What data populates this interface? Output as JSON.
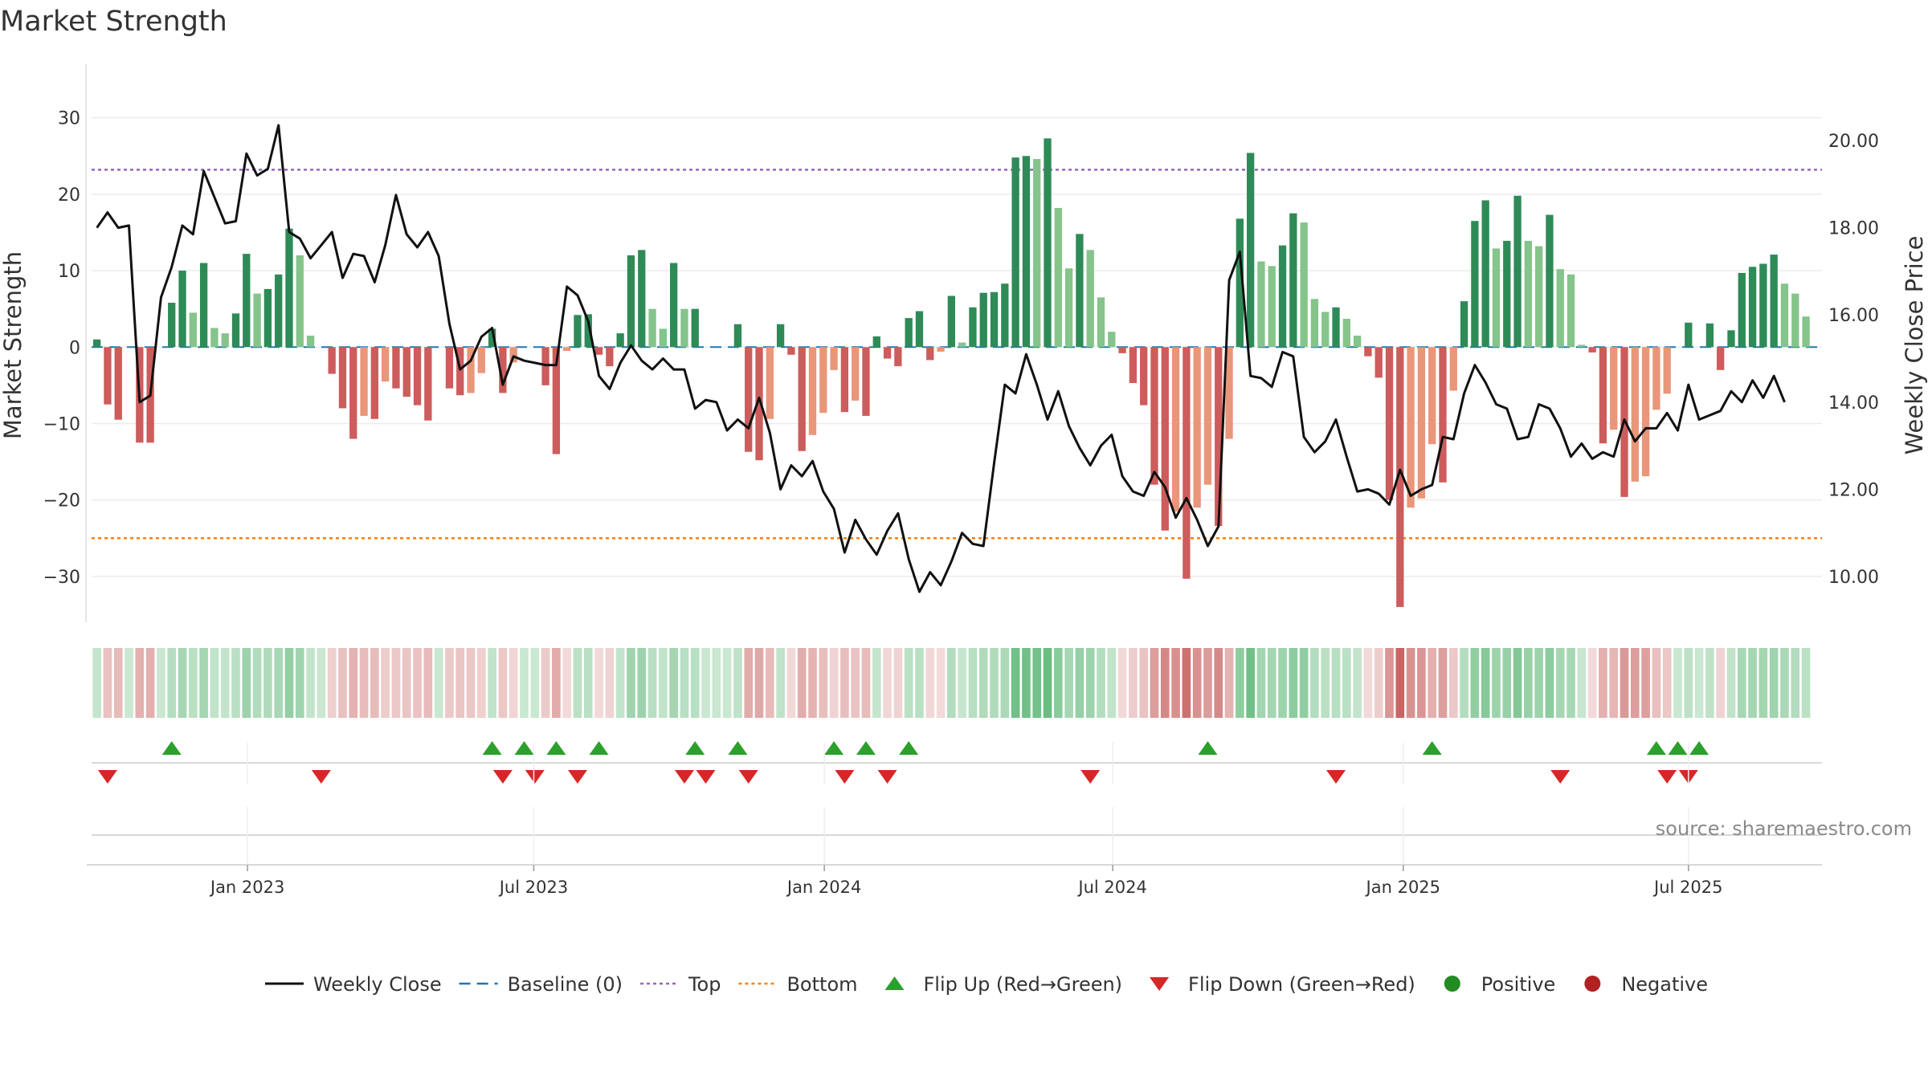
{
  "chart_data": {
    "type": "bar",
    "title": "Market Strength",
    "ylabel": "Market Strength",
    "y2label": "Weekly Close Price",
    "ylim": [
      -36,
      37
    ],
    "y2lim": [
      8.95,
      21.75
    ],
    "yticks": [
      -30,
      -20,
      -10,
      0,
      10,
      20,
      30
    ],
    "y2ticks": [
      10,
      12,
      14,
      16,
      18,
      20
    ],
    "top_line": 23.2,
    "bottom_line": -25,
    "x_start_week": 0,
    "x_end_week": 162,
    "date_ticks": [
      {
        "label": "Jan 2023",
        "week": 14.6
      },
      {
        "label": "Jul 2023",
        "week": 41.4
      },
      {
        "label": "Jan 2024",
        "week": 68.6
      },
      {
        "label": "Jul 2024",
        "week": 95.6
      },
      {
        "label": "Jan 2025",
        "week": 122.8
      },
      {
        "label": "Jul 2025",
        "week": 149.5
      }
    ],
    "strength": [
      1,
      -7.5,
      -9.5,
      0,
      -12.5,
      -12.5,
      0,
      5.8,
      10,
      4.5,
      11,
      2.5,
      1.8,
      4.4,
      12.2,
      7,
      7.6,
      9.5,
      15.5,
      12,
      1.5,
      0,
      -3.5,
      -8,
      -12,
      -9,
      -9.4,
      -4.5,
      -5.4,
      -6.5,
      -7.6,
      -9.6,
      0,
      -5.4,
      -6.3,
      -6,
      -3.4,
      2.4,
      -6,
      -2,
      0,
      0,
      -5,
      -14,
      -0.5,
      4.2,
      4.3,
      -1,
      -2.5,
      1.8,
      12,
      12.7,
      5,
      2.4,
      11,
      5,
      5,
      0,
      0,
      0,
      3,
      -13.7,
      -14.8,
      -9.4,
      3,
      -1,
      -13.6,
      -11.5,
      -8.6,
      -3,
      -8.5,
      -7,
      -9,
      1.4,
      -1.5,
      -2.5,
      3.8,
      4.7,
      -1.7,
      -0.6,
      6.7,
      0.6,
      5.2,
      7.1,
      7.2,
      8.3,
      24.8,
      25,
      24.6,
      27.3,
      18.2,
      10.3,
      14.8,
      12.7,
      6.5,
      2,
      -0.8,
      -4.7,
      -7.6,
      -18,
      -24,
      -21.5,
      -30.3,
      -21,
      -18,
      -23.4,
      -12,
      16.8,
      25.4,
      11.2,
      10.6,
      13.3,
      17.5,
      16.3,
      6.3,
      4.6,
      5.2,
      3.7,
      1.5,
      -1.2,
      -4,
      -20,
      -34,
      -21,
      -19.8,
      -12.7,
      -17.7,
      -5.7,
      6,
      16.5,
      19.2,
      12.9,
      13.9,
      19.8,
      13.9,
      13.2,
      17.3,
      10.2,
      9.5,
      0.3,
      -0.7,
      -12.6,
      -10.8,
      -19.6,
      -17.6,
      -16.9,
      -8.2,
      -6.1,
      0,
      3.2,
      0,
      3.1,
      -3,
      2.2,
      9.7,
      10.5,
      10.9,
      12.1,
      8.3,
      7,
      4
    ],
    "close": [
      18.0,
      18.35,
      18.0,
      18.05,
      14.0,
      14.15,
      16.4,
      17.1,
      18.05,
      17.85,
      19.3,
      18.7,
      18.1,
      18.15,
      19.7,
      19.2,
      19.35,
      20.35,
      17.9,
      17.75,
      17.3,
      17.6,
      17.9,
      16.85,
      17.4,
      17.35,
      16.75,
      17.6,
      18.75,
      17.85,
      17.55,
      17.9,
      17.35,
      15.8,
      14.75,
      14.95,
      15.5,
      15.7,
      14.4,
      15.05,
      14.95,
      14.9,
      14.85,
      14.85,
      16.65,
      16.45,
      15.85,
      14.6,
      14.3,
      14.9,
      15.3,
      14.95,
      14.75,
      15.0,
      14.75,
      14.75,
      13.85,
      14.05,
      14.0,
      13.35,
      13.6,
      13.4,
      14.1,
      13.3,
      12.0,
      12.55,
      12.3,
      12.65,
      11.95,
      11.55,
      10.55,
      11.3,
      10.85,
      10.5,
      11.05,
      11.45,
      10.4,
      9.65,
      10.1,
      9.8,
      10.35,
      11.0,
      10.75,
      10.7,
      12.6,
      14.4,
      14.2,
      15.1,
      14.4,
      13.6,
      14.25,
      13.45,
      12.95,
      12.55,
      13.0,
      13.25,
      12.3,
      11.95,
      11.85,
      12.4,
      12.05,
      11.35,
      11.8,
      11.3,
      10.7,
      11.15,
      16.8,
      17.45,
      14.6,
      14.55,
      14.35,
      15.15,
      15.05,
      13.2,
      12.85,
      13.1,
      13.6,
      12.75,
      11.95,
      12.0,
      11.9,
      11.65,
      12.45,
      11.85,
      12.0,
      12.1,
      13.2,
      13.15,
      14.2,
      14.85,
      14.45,
      13.95,
      13.85,
      13.15,
      13.2,
      13.95,
      13.85,
      13.4,
      12.75,
      13.05,
      12.7,
      12.85,
      12.75,
      13.6,
      13.1,
      13.4,
      13.4,
      13.75,
      13.35,
      14.4,
      13.6,
      13.7,
      13.8,
      14.25,
      14.0,
      14.5,
      14.1,
      14.6,
      14.0
    ],
    "flip_up_weeks": [
      7,
      37,
      40,
      43,
      47,
      56,
      60,
      69,
      72,
      76,
      104,
      125,
      146,
      148,
      150
    ],
    "flip_down_weeks": [
      1,
      21,
      38,
      41,
      45,
      55,
      57,
      61,
      70,
      74,
      93,
      116,
      137,
      147,
      149
    ],
    "colors": {
      "bar_green_dark": "#2e8b57",
      "bar_green_light": "#85c48a",
      "bar_red_dark": "#cd5c5c",
      "bar_red_light": "#e9967a",
      "close_line": "#111111",
      "baseline": "#1f77b4",
      "top": "#9467bd",
      "bottom": "#ff7f0e",
      "flip_up": "#2ca02c",
      "flip_down": "#d62728",
      "positive": "#228b22",
      "negative": "#b22222"
    }
  },
  "legend": [
    {
      "label": "Weekly Close",
      "kind": "line"
    },
    {
      "label": "Baseline (0)",
      "kind": "dash"
    },
    {
      "label": "Top",
      "kind": "dot-top"
    },
    {
      "label": "Bottom",
      "kind": "dot-bottom"
    },
    {
      "label": "Flip Up (Red→Green)",
      "kind": "tri-up"
    },
    {
      "label": "Flip Down (Green→Red)",
      "kind": "tri-down"
    },
    {
      "label": "Positive",
      "kind": "circle-pos"
    },
    {
      "label": "Negative",
      "kind": "circle-neg"
    }
  ],
  "source": "source: sharemaestro.com"
}
